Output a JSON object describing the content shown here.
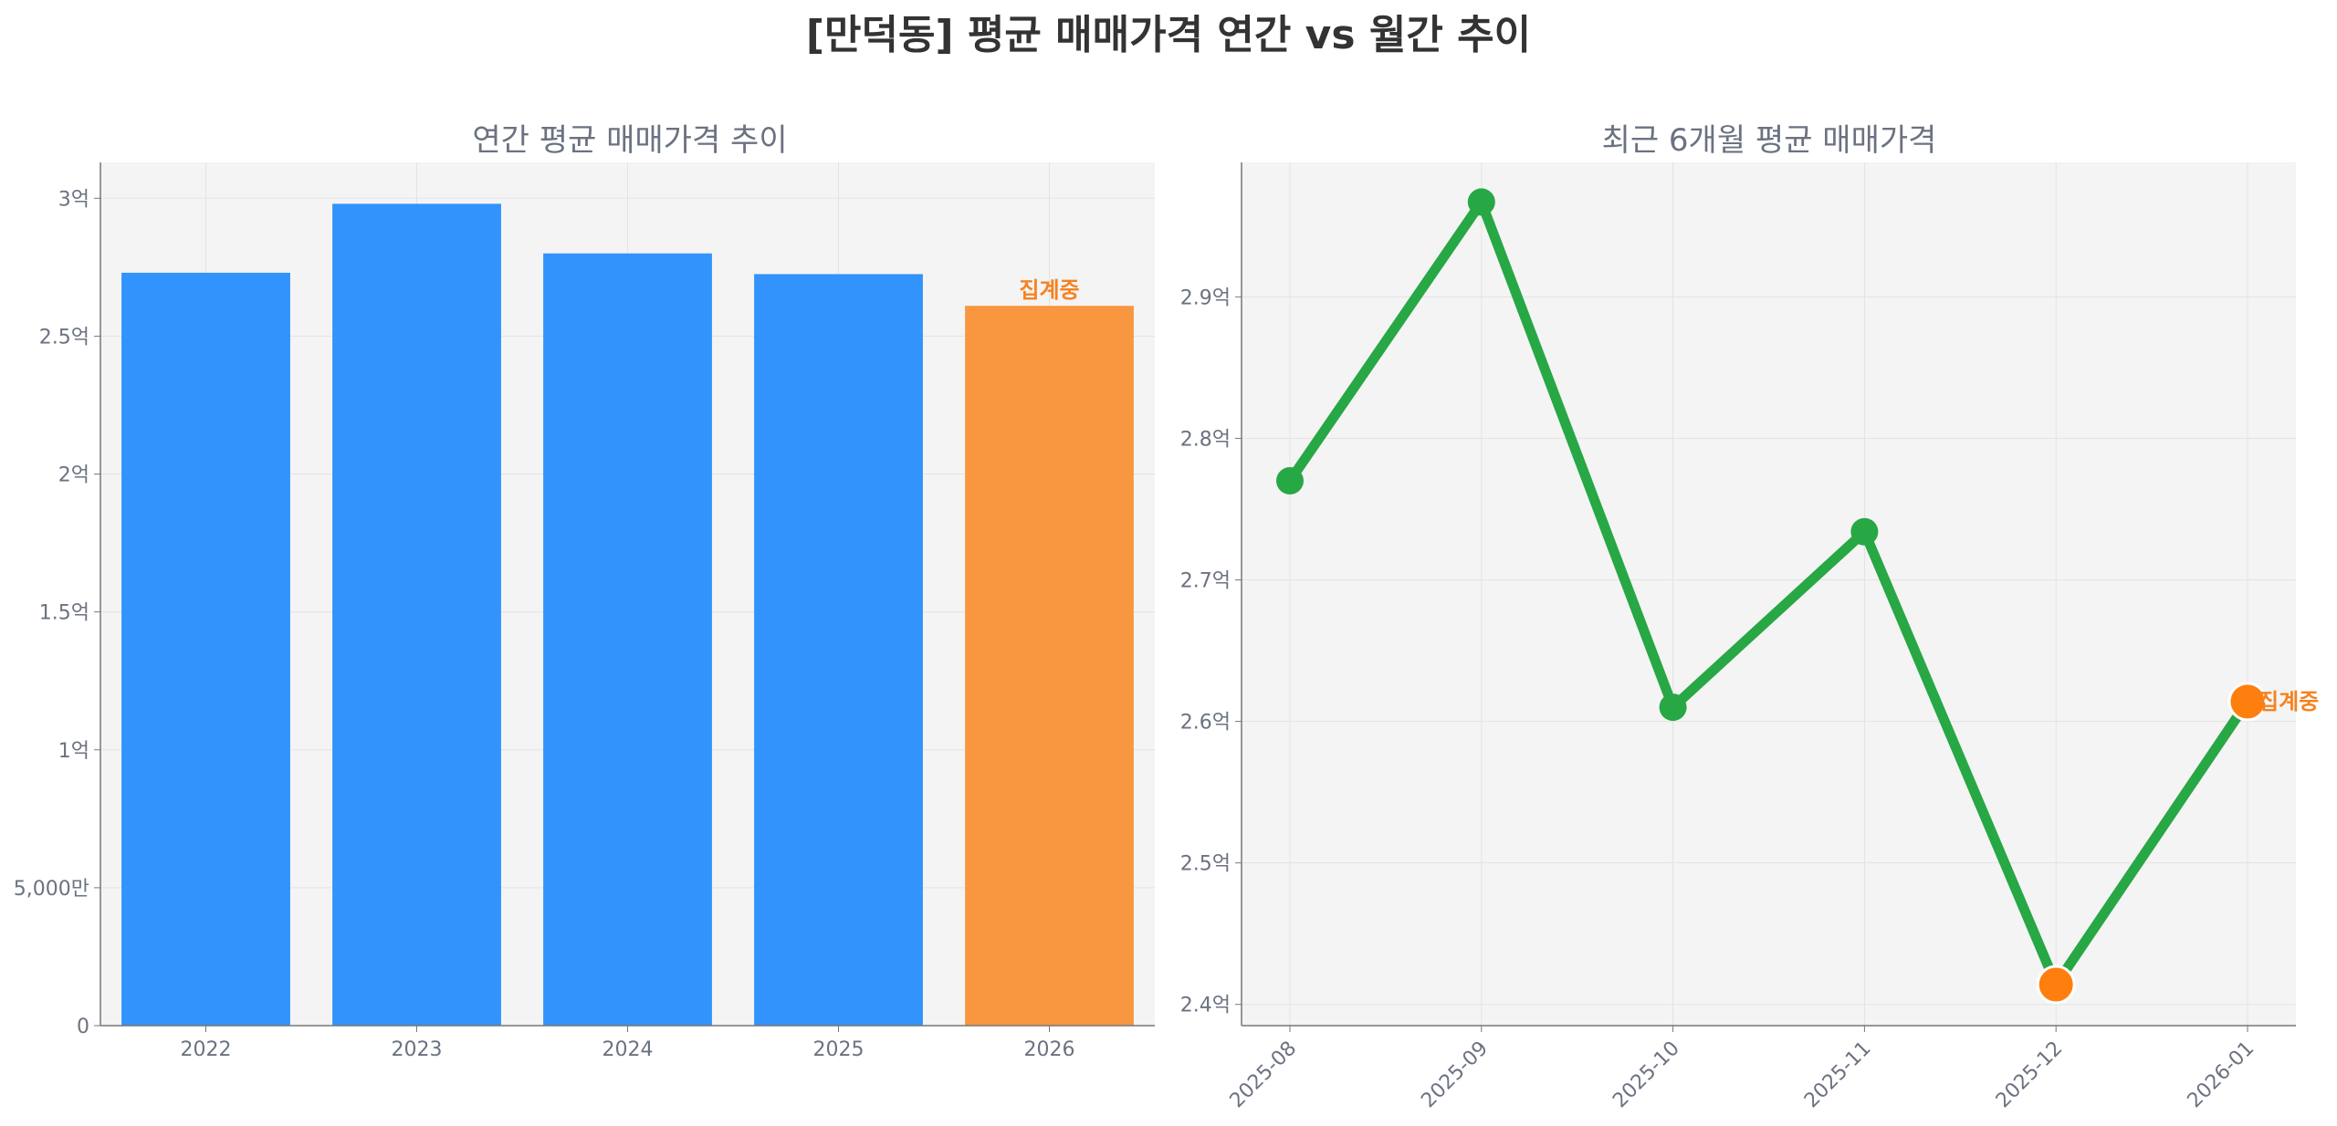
{
  "title": "[만덕동] 평균 매매가격 연간 vs 월간 추이",
  "chart_data": [
    {
      "type": "bar",
      "title": "연간 평균 매매가격 추이",
      "xlabel": "",
      "ylabel": "",
      "categories": [
        "2022",
        "2023",
        "2024",
        "2025",
        "2026"
      ],
      "values": [
        273000000,
        298000000,
        280000000,
        272500000,
        261000000
      ],
      "colors": [
        "#3193fb",
        "#3193fb",
        "#3193fb",
        "#3193fb",
        "#f89740"
      ],
      "ylim": [
        0,
        313000000
      ],
      "yticks": [
        0,
        50000000,
        100000000,
        150000000,
        200000000,
        250000000,
        300000000
      ],
      "yticklabels": [
        "0",
        "5,000만",
        "1억",
        "1.5억",
        "2억",
        "2.5억",
        "3억"
      ],
      "annotation": {
        "category": "2026",
        "text": "집계중",
        "color": "#f58220"
      },
      "grid": true
    },
    {
      "type": "line",
      "title": "최근 6개월 평균 매매가격",
      "xlabel": "",
      "ylabel": "",
      "x": [
        "2025-08",
        "2025-09",
        "2025-10",
        "2025-11",
        "2025-12",
        "2026-01"
      ],
      "series": [
        {
          "values": [
            277000000,
            296700000,
            261000000,
            273400000,
            241400000,
            261400000
          ],
          "color": "#28a745"
        }
      ],
      "highlight": {
        "indices": [
          4,
          5
        ],
        "color": "#ff7f0e"
      },
      "ylim": [
        238500000,
        299500000
      ],
      "yticks": [
        240000000,
        250000000,
        260000000,
        270000000,
        280000000,
        290000000
      ],
      "yticklabels": [
        "2.4억",
        "2.5억",
        "2.6억",
        "2.7억",
        "2.8억",
        "2.9억"
      ],
      "annotation": {
        "index": 5,
        "text": "집계중",
        "color": "#f58220"
      },
      "grid": true
    }
  ]
}
